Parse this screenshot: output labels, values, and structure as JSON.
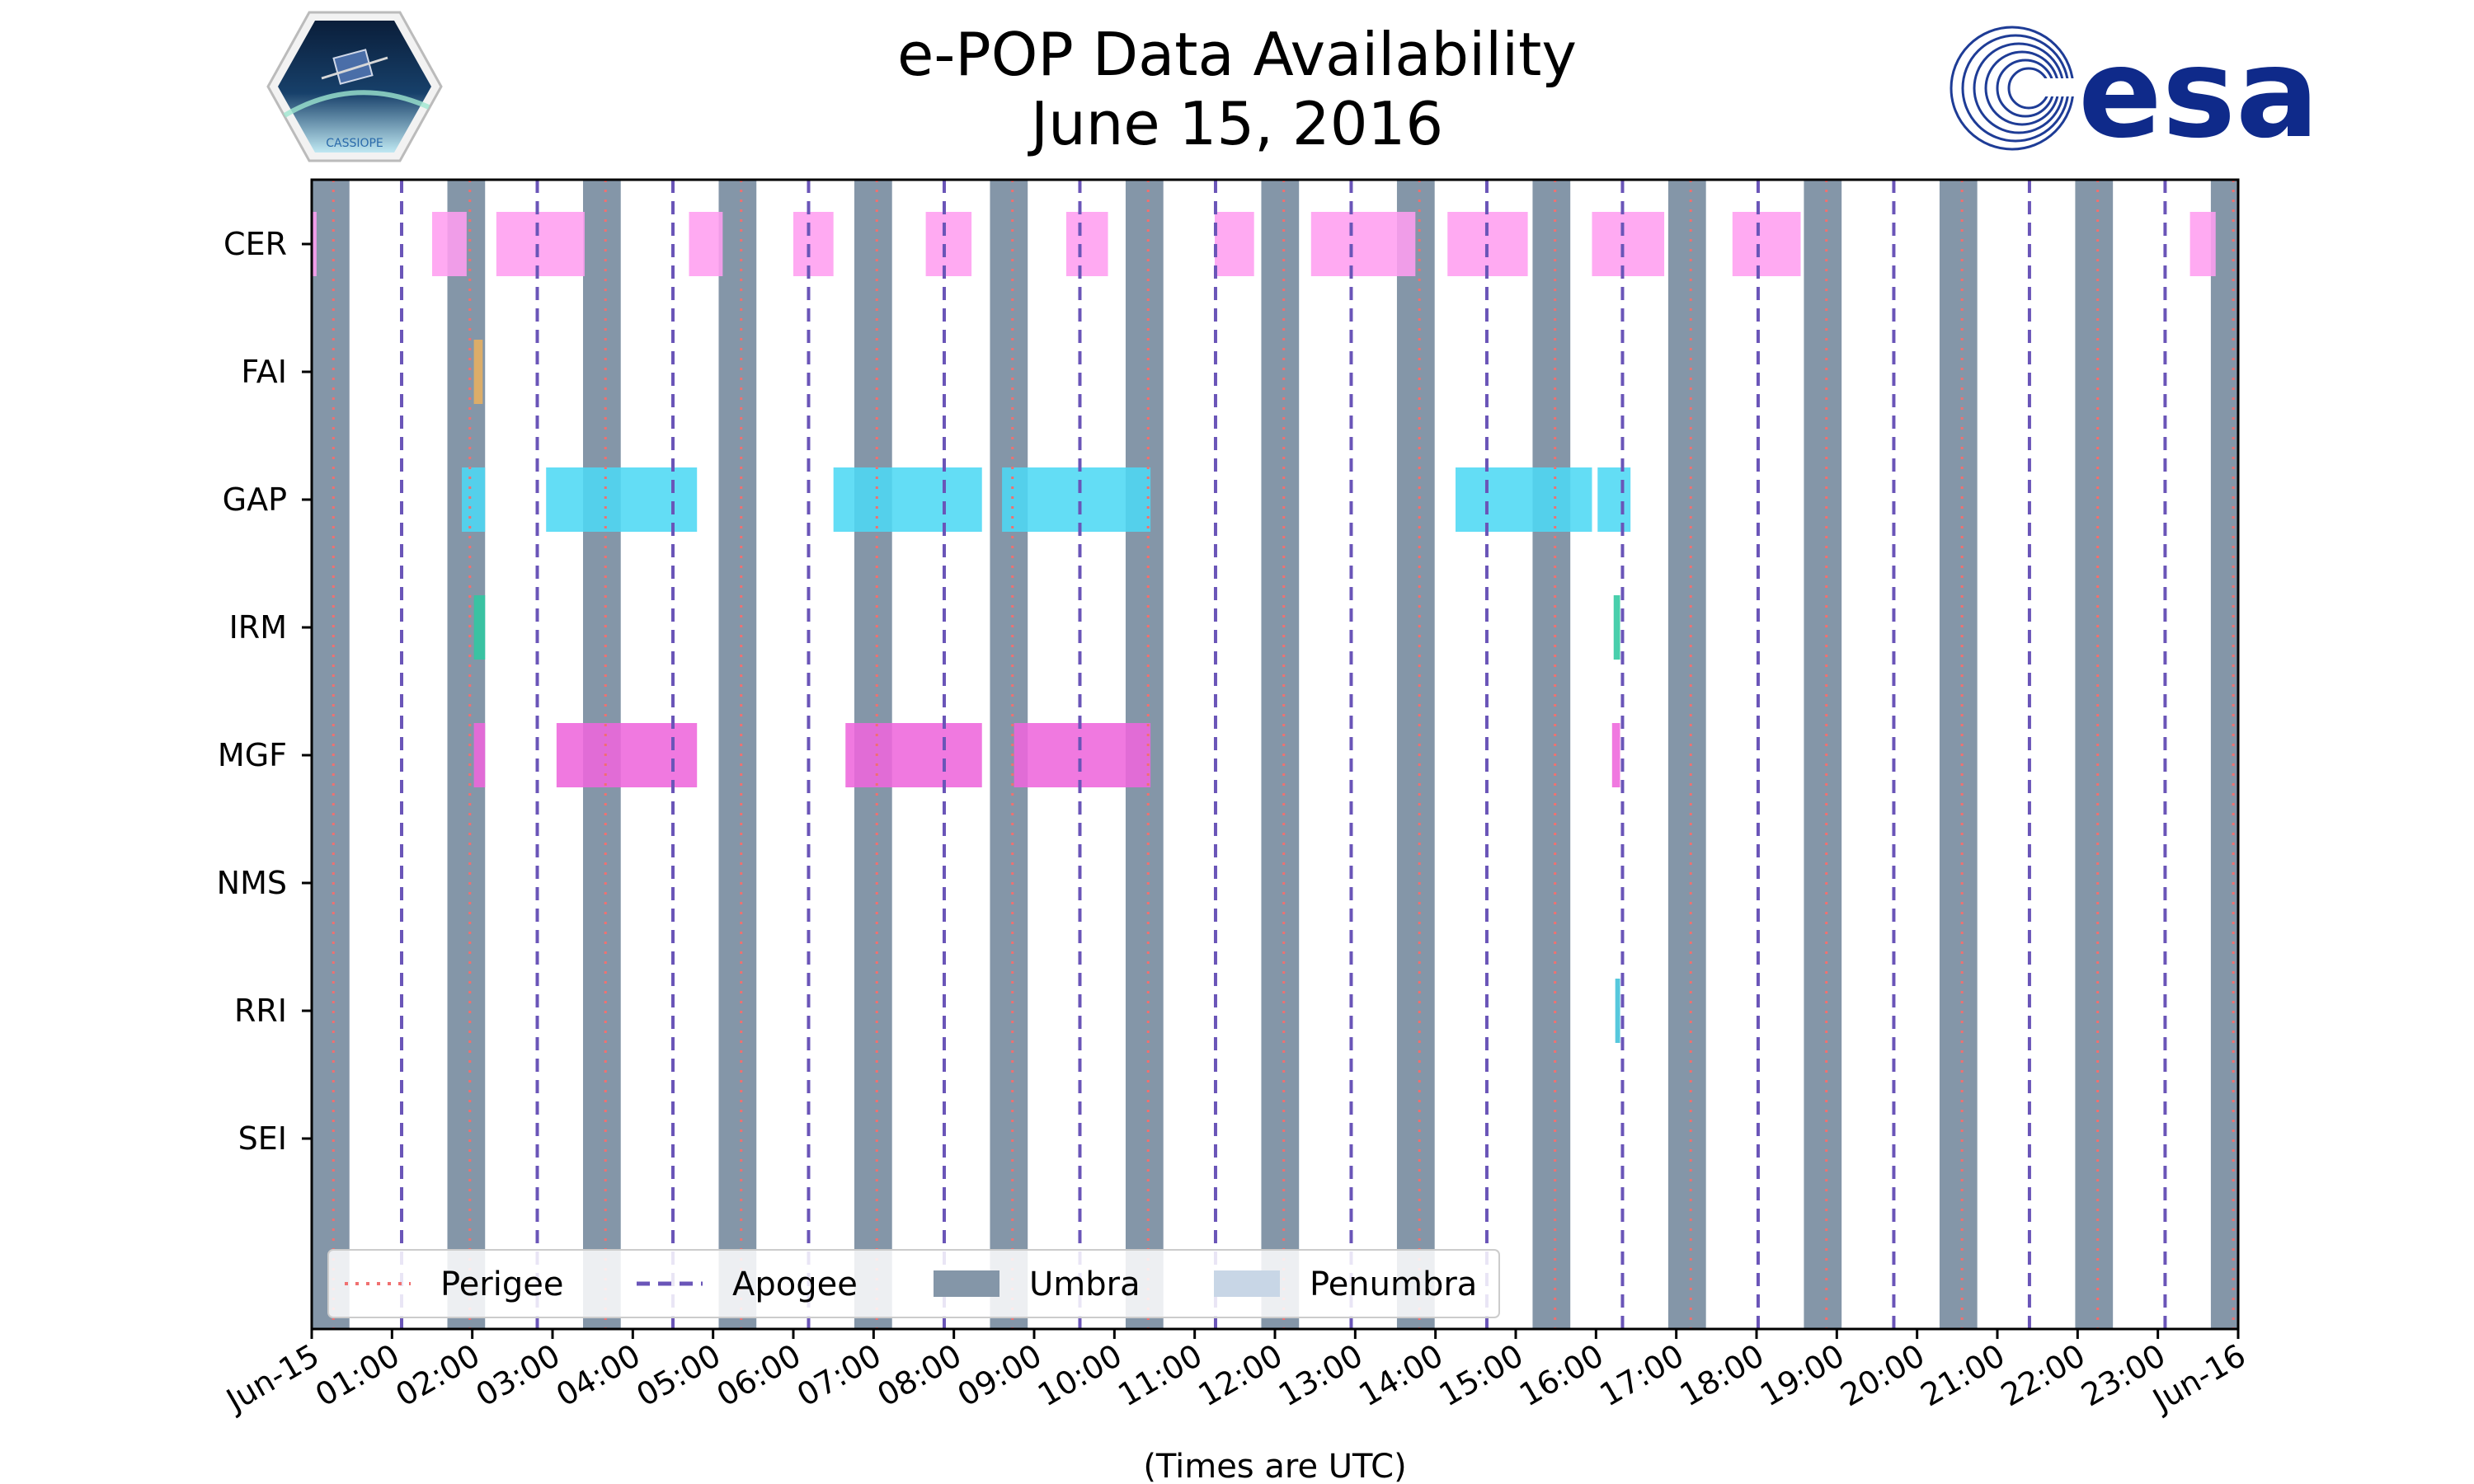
{
  "chart_data": {
    "type": "gantt",
    "title": "e-POP Data Availability",
    "subtitle": "June 15, 2016",
    "xlabel": "(Times are UTC)",
    "x_range_hours": [
      0,
      24
    ],
    "xticks": [
      "Jun-15",
      "01:00",
      "02:00",
      "03:00",
      "04:00",
      "05:00",
      "06:00",
      "07:00",
      "08:00",
      "09:00",
      "10:00",
      "11:00",
      "12:00",
      "13:00",
      "14:00",
      "15:00",
      "16:00",
      "17:00",
      "18:00",
      "19:00",
      "20:00",
      "21:00",
      "22:00",
      "23:00",
      "Jun-16"
    ],
    "instruments": [
      "CER",
      "FAI",
      "GAP",
      "IRM",
      "MGF",
      "NMS",
      "RRI",
      "SEI"
    ],
    "legend": {
      "placement": "lower-left",
      "entries": [
        "Perigee",
        "Apogee",
        "Umbra",
        "Penumbra"
      ]
    },
    "colors": {
      "perigee": "#f07070",
      "apogee": "#6a55b8",
      "umbra": "#8496a8",
      "penumbra": "#c8d6e6",
      "CER": "#ff9ef0",
      "FAI": "#e8b060",
      "GAP": "#4dd8f4",
      "IRM": "#30c8a0",
      "MGF": "#ee66dc",
      "NMS": "#888888",
      "RRI": "#40c0d8",
      "SEI": "#888888"
    },
    "perigee_hours": [
      0.27,
      1.97,
      3.66,
      5.35,
      7.04,
      8.73,
      10.42,
      12.11,
      13.8,
      15.49,
      17.18,
      18.87,
      20.56,
      22.25,
      23.94
    ],
    "apogee_hours": [
      1.12,
      2.81,
      4.5,
      6.19,
      7.88,
      9.57,
      11.26,
      12.95,
      14.64,
      16.33,
      18.02,
      19.71,
      21.4,
      23.09
    ],
    "umbra_intervals": [
      [
        0.0,
        0.47
      ],
      [
        1.69,
        2.16
      ],
      [
        3.38,
        3.85
      ],
      [
        5.07,
        5.54
      ],
      [
        6.76,
        7.23
      ],
      [
        8.45,
        8.92
      ],
      [
        10.14,
        10.61
      ],
      [
        11.83,
        12.3
      ],
      [
        13.52,
        13.99
      ],
      [
        15.21,
        15.68
      ],
      [
        16.9,
        17.37
      ],
      [
        18.59,
        19.06
      ],
      [
        20.28,
        20.75
      ],
      [
        21.97,
        22.44
      ],
      [
        23.66,
        24.0
      ]
    ],
    "segments": {
      "CER": [
        [
          0.0,
          0.06
        ],
        [
          1.5,
          1.93
        ],
        [
          2.3,
          3.4
        ],
        [
          4.7,
          5.12
        ],
        [
          6.0,
          6.5
        ],
        [
          7.65,
          8.22
        ],
        [
          9.4,
          9.92
        ],
        [
          11.25,
          11.74
        ],
        [
          12.45,
          13.75
        ],
        [
          14.15,
          15.15
        ],
        [
          15.95,
          16.85
        ],
        [
          17.7,
          18.55
        ],
        [
          23.4,
          23.72
        ]
      ],
      "FAI": [
        [
          2.02,
          2.13
        ]
      ],
      "GAP": [
        [
          1.87,
          2.16
        ],
        [
          2.92,
          4.8
        ],
        [
          6.5,
          8.35
        ],
        [
          8.6,
          10.45
        ],
        [
          14.25,
          15.95
        ],
        [
          16.02,
          16.43
        ]
      ],
      "IRM": [
        [
          2.02,
          2.16
        ],
        [
          16.22,
          16.3
        ]
      ],
      "MGF": [
        [
          2.02,
          2.16
        ],
        [
          3.05,
          4.8
        ],
        [
          6.65,
          8.35
        ],
        [
          8.75,
          10.45
        ],
        [
          16.2,
          16.3
        ]
      ],
      "NMS": [],
      "RRI": [
        [
          16.24,
          16.3
        ]
      ],
      "SEI": []
    }
  },
  "logos": {
    "esa_text": "esa",
    "cassiope_text": "CASSIOPE"
  }
}
